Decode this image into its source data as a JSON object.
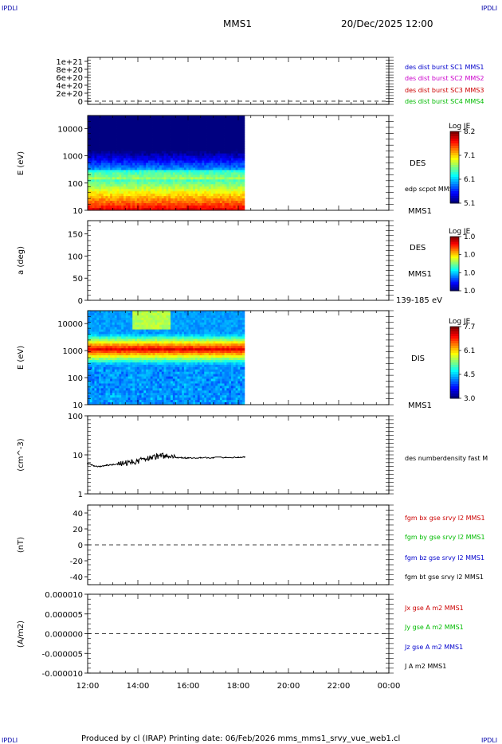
{
  "corner_labels": {
    "tl": "IPDLI",
    "tr": "IPDLI",
    "bl": "IPDLI",
    "br": "IPDLI"
  },
  "header": {
    "spacecraft": "MMS1",
    "datetime": "20/Dec/2025 12:00"
  },
  "footer": {
    "text": "Produced by cl (IRAP)   Printing date: 06/Feb/2026   mms_mms1_srvy_vue_web1.cl"
  },
  "time_axis": {
    "ticks": [
      "12:00",
      "14:00",
      "16:00",
      "18:00",
      "20:00",
      "22:00",
      "00:00"
    ],
    "start_hour": 12,
    "end_hour": 24,
    "data_end_hour": 18.25
  },
  "panels": [
    {
      "id": "dist",
      "type": "line",
      "yticks": [
        "1e+21",
        "8e+20",
        "6e+20",
        "4e+20",
        "2e+20",
        "0"
      ],
      "ylim": [
        0,
        1e+21
      ],
      "dashed_zero": true,
      "legend": [
        {
          "text": "des dist burst SC1 MMS1",
          "color": "#0000cc"
        },
        {
          "text": "des dist burst SC2 MMS2",
          "color": "#cc00cc"
        },
        {
          "text": "des dist burst SC3 MMS3",
          "color": "#cc0000"
        },
        {
          "text": "des dist burst SC4 MMS4",
          "color": "#00bb00"
        }
      ]
    },
    {
      "id": "des_energy",
      "type": "heatmap",
      "ylabel": "E (eV)",
      "yticks": [
        "10000",
        "1000",
        "100",
        "10"
      ],
      "scale": "log",
      "ylim": [
        10,
        30000
      ],
      "right_labels": [
        "DES",
        "edp scpot MMS1",
        "MMS1"
      ],
      "colorbar": {
        "title": "Log JE",
        "ticks": [
          "8.2",
          "7.1",
          "6.1",
          "5.1"
        ]
      }
    },
    {
      "id": "des_pitch",
      "type": "heatmap",
      "ylabel": "a (deg)",
      "yticks": [
        "150",
        "100",
        "50",
        "0"
      ],
      "ylim": [
        0,
        180
      ],
      "right_labels": [
        "DES",
        "MMS1",
        "139-185 eV"
      ],
      "colorbar": {
        "title": "Log JE",
        "ticks": [
          "1.0",
          "1.0",
          "1.0",
          "1.0"
        ]
      }
    },
    {
      "id": "dis_energy",
      "type": "heatmap",
      "ylabel": "E (eV)",
      "yticks": [
        "10000",
        "1000",
        "100",
        "10"
      ],
      "scale": "log",
      "ylim": [
        10,
        30000
      ],
      "right_labels": [
        "DIS",
        "MMS1"
      ],
      "colorbar": {
        "title": "Log JE",
        "ticks": [
          "7.7",
          "6.1",
          "4.5",
          "3.0"
        ]
      }
    },
    {
      "id": "density",
      "type": "line",
      "ylabel": "(cm^-3)",
      "yticks": [
        "100",
        "10",
        "1"
      ],
      "scale": "log",
      "ylim": [
        1,
        100
      ],
      "legend": [
        {
          "text": "des numberdensity fast M",
          "color": "#000000"
        }
      ]
    },
    {
      "id": "bfield",
      "type": "line",
      "ylabel": "(nT)",
      "yticks": [
        "40",
        "20",
        "0",
        "-20",
        "-40"
      ],
      "ylim": [
        -50,
        50
      ],
      "dashed_zero": true,
      "legend": [
        {
          "text": "fgm bx gse srvy l2 MMS1",
          "color": "#cc0000"
        },
        {
          "text": "fgm by gse srvy l2 MMS1",
          "color": "#00bb00"
        },
        {
          "text": "fgm bz gse srvy l2 MMS1",
          "color": "#0000cc"
        },
        {
          "text": "fgm bt gse srvy l2 MMS1",
          "color": "#000000"
        }
      ]
    },
    {
      "id": "current",
      "type": "line",
      "ylabel": "(A/m2)",
      "yticks": [
        "0.000010",
        "0.000005",
        "0.000000",
        "-0.000005",
        "-0.000010"
      ],
      "ylim": [
        -1e-05,
        1e-05
      ],
      "dashed_zero": true,
      "legend": [
        {
          "text": "Jx gse A m2 MMS1",
          "color": "#cc0000"
        },
        {
          "text": "Jy gse A m2 MMS1",
          "color": "#00bb00"
        },
        {
          "text": "Jz gse A m2 MMS1",
          "color": "#0000cc"
        },
        {
          "text": "J A m2 MMS1",
          "color": "#000000"
        }
      ]
    }
  ],
  "chart_data": {
    "type": "line",
    "title": "MMS1",
    "xlabel": "",
    "x": [
      12.0,
      12.25,
      12.5,
      12.75,
      13.0,
      13.25,
      13.5,
      13.75,
      14.0,
      14.25,
      14.5,
      14.75,
      15.0,
      15.25,
      15.5,
      15.75,
      16.0,
      16.5,
      17.0,
      17.5,
      18.0,
      18.25
    ],
    "series": [
      {
        "name": "des numberdensity fast M",
        "values": [
          6.0,
          5.2,
          5.0,
          5.4,
          5.6,
          5.8,
          6.2,
          6.5,
          6.9,
          7.8,
          8.5,
          9.2,
          9.5,
          9.0,
          8.6,
          8.4,
          8.3,
          8.4,
          8.5,
          8.6,
          8.7,
          8.8
        ]
      }
    ],
    "ylim": [
      1,
      100
    ],
    "scale": "log"
  }
}
